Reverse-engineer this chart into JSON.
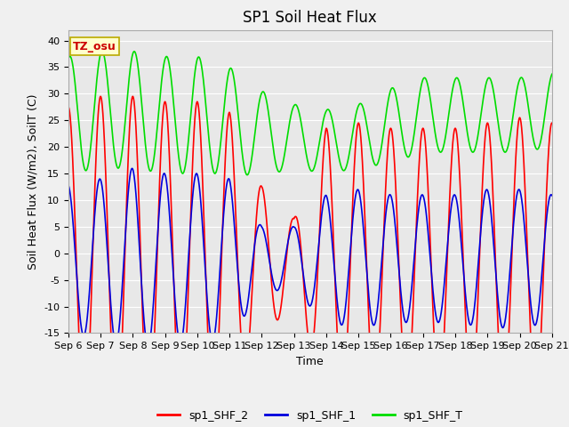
{
  "title": "SP1 Soil Heat Flux",
  "xlabel": "Time",
  "ylabel": "Soil Heat Flux (W/m2), SoilT (C)",
  "ylim": [
    -15,
    42
  ],
  "yticks": [
    -15,
    -10,
    -5,
    0,
    5,
    10,
    15,
    20,
    25,
    30,
    35,
    40
  ],
  "num_days": 15,
  "start_day": 6,
  "legend_labels": [
    "sp1_SHF_2",
    "sp1_SHF_1",
    "sp1_SHF_T"
  ],
  "colors": {
    "shf2": "#ff0000",
    "shf1": "#0000dd",
    "shfT": "#00dd00"
  },
  "annotation_text": "TZ_osu",
  "annotation_color": "#cc0000",
  "annotation_bg": "#ffffcc",
  "annotation_border": "#bbaa00",
  "plot_bg": "#e8e8e8",
  "grid_color": "#ffffff",
  "title_fontsize": 12,
  "label_fontsize": 9,
  "tick_fontsize": 8,
  "line_width": 1.2,
  "ppd": 480,
  "shf2_amps": [
    29,
    31,
    31,
    30,
    30,
    28,
    14,
    8,
    25,
    26,
    25,
    25,
    25,
    26,
    27,
    26
  ],
  "shf1_amps": [
    14,
    15,
    17,
    16,
    16,
    15,
    6,
    6,
    12,
    13,
    12,
    12,
    12,
    13,
    13,
    12
  ],
  "shf2_mean": -1.5,
  "shf1_mean": -1.0,
  "shfT_means": [
    26,
    27,
    27,
    26,
    26,
    25,
    22.5,
    22,
    21,
    22,
    24,
    26,
    26,
    26,
    26,
    27
  ],
  "shfT_amps": [
    11,
    11,
    11,
    11,
    11,
    10,
    8,
    6,
    6,
    6,
    7,
    7,
    7,
    7,
    7,
    7
  ],
  "phase_shf2": 1.5707963,
  "phase_shf1": 1.7207963,
  "phase_shfT": 1.2707963
}
